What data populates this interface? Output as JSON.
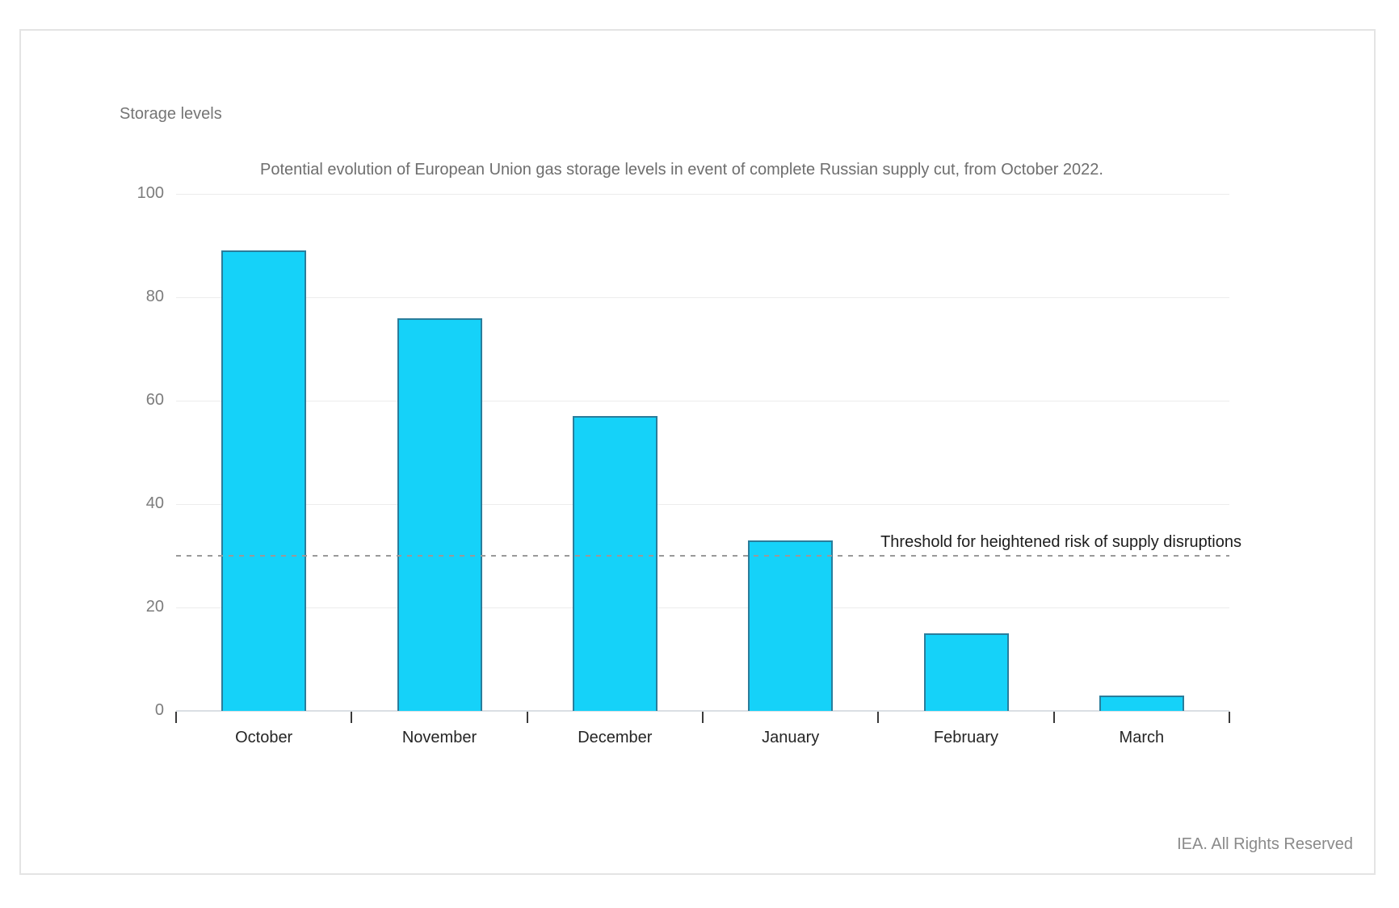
{
  "page": {
    "footer": "IEA. All Rights Reserved",
    "background_color": "#ffffff",
    "border_color": "#e4e4e4"
  },
  "chart_data": {
    "type": "bar",
    "title": "Potential evolution of European Union gas storage levels in event of complete Russian supply cut, from October 2022.",
    "ylabel": "Storage levels",
    "xlabel": "",
    "categories": [
      "October",
      "November",
      "December",
      "January",
      "February",
      "March"
    ],
    "values": [
      89,
      76,
      57,
      33,
      15,
      3
    ],
    "ylim": [
      0,
      100
    ],
    "yticks": [
      0,
      20,
      40,
      60,
      80,
      100
    ],
    "grid": "horizontal",
    "legend": "none",
    "bar_color": "#15d2f9",
    "bar_border_color": "#2a7d9b",
    "gridline_color": "#ececec",
    "axis_color": "#dadfe4",
    "threshold": {
      "value": 30,
      "label": "Threshold for heightened risk of supply disruptions",
      "line_style": "dashed",
      "line_color": "#999999"
    }
  }
}
